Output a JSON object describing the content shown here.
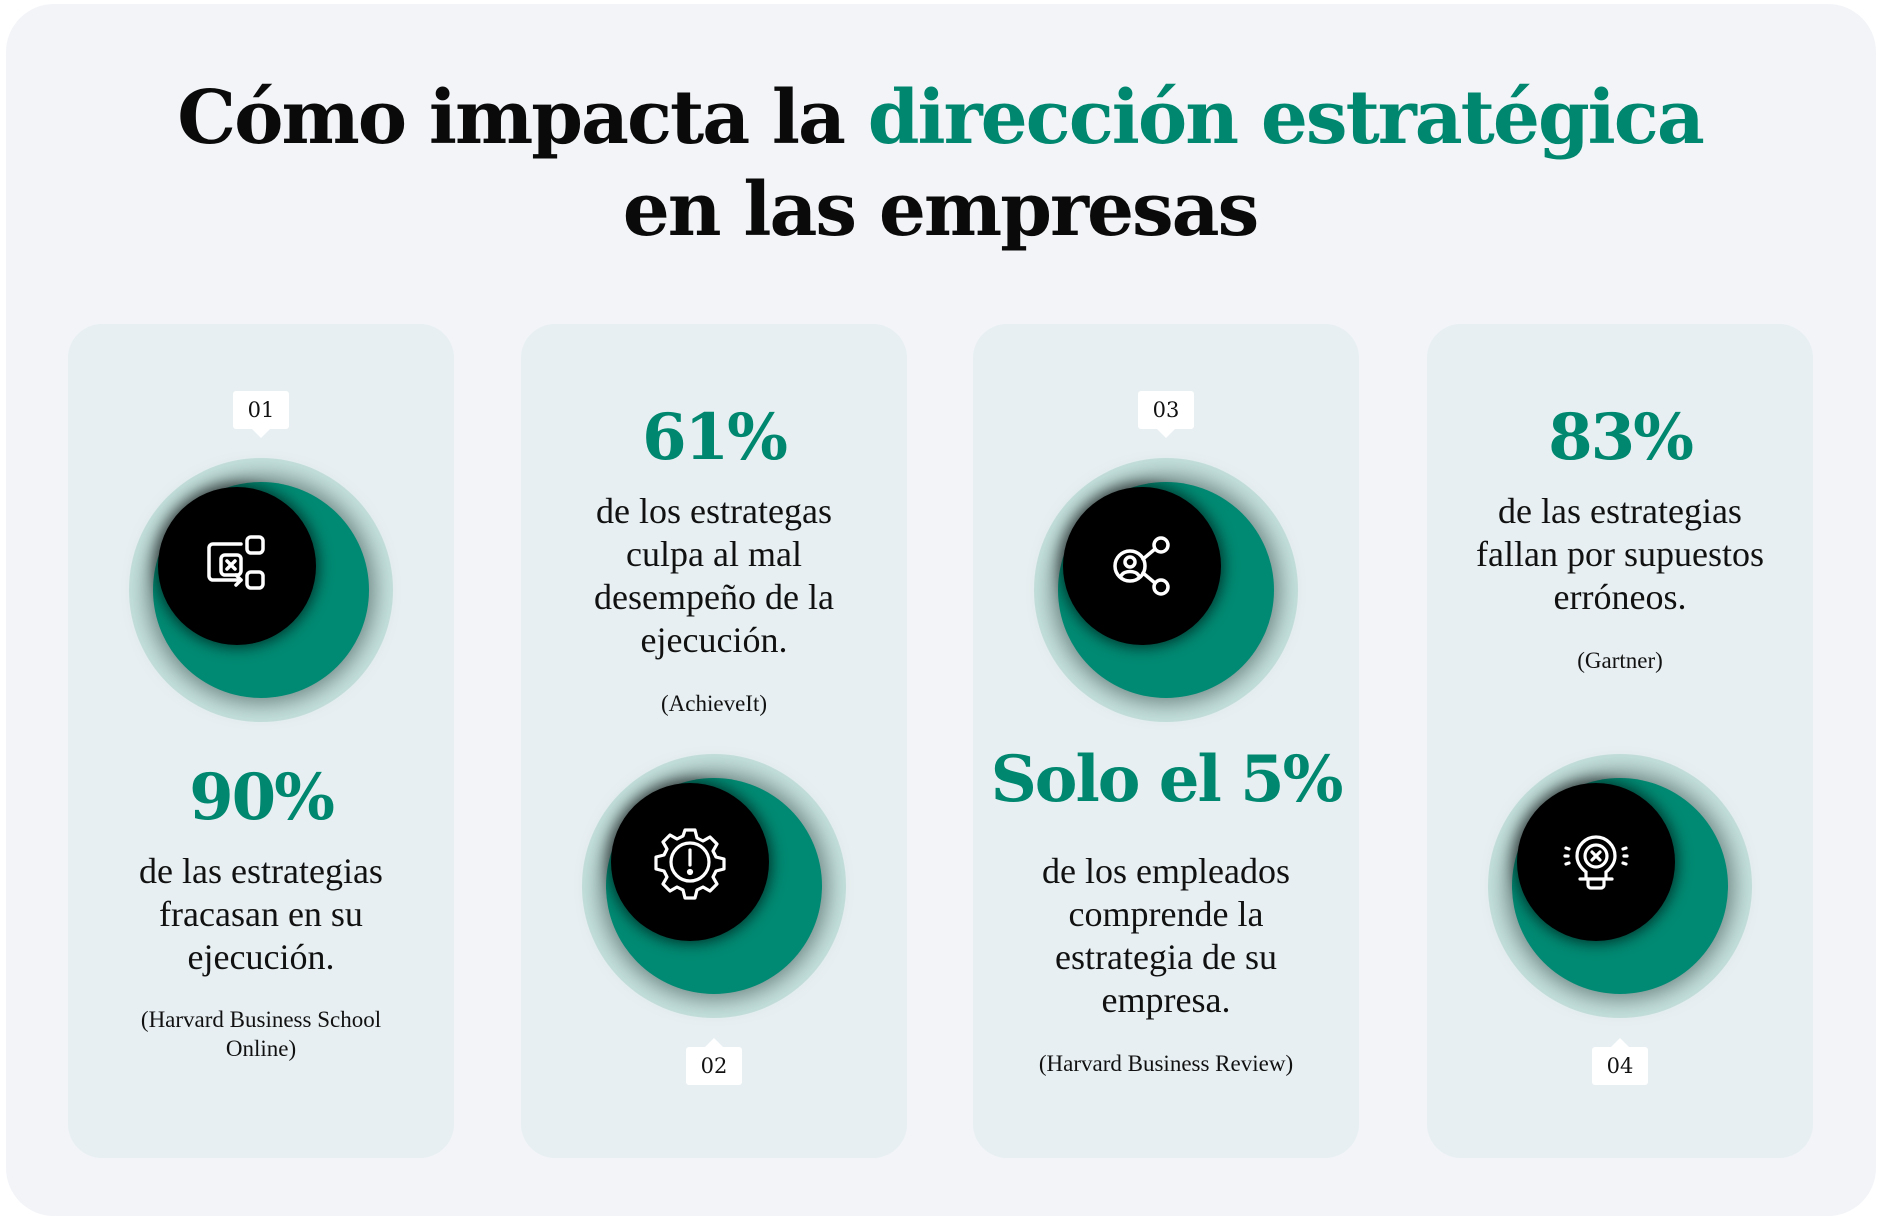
{
  "title": {
    "part1": "Cómo impacta la ",
    "accent": "dirección estratégica",
    "line2": "en las empresas"
  },
  "colors": {
    "accent": "#00876f",
    "ring": "#008a73",
    "halo": "#c6e2de",
    "card": "#e7eff2",
    "background": "#f2f4f8"
  },
  "cards": [
    {
      "number": "01",
      "stat": "90%",
      "text": [
        "de las estrategias",
        "fracasan en su",
        "ejecución."
      ],
      "source": [
        "(Harvard Business School",
        "Online)"
      ],
      "icon": "process-x-icon"
    },
    {
      "number": "02",
      "stat": "61%",
      "text": [
        "de los estrategas",
        "culpa al mal",
        "desempeño de la",
        "ejecución."
      ],
      "source": [
        "(AchieveIt)"
      ],
      "icon": "gear-alert-icon"
    },
    {
      "number": "03",
      "stat": "Solo el 5%",
      "text": [
        "de los empleados",
        "comprende la",
        "estrategia de su",
        "empresa."
      ],
      "source": [
        "(Harvard Business Review)"
      ],
      "icon": "share-user-icon"
    },
    {
      "number": "04",
      "stat": "83%",
      "text": [
        "de las estrategias",
        "fallan por supuestos",
        "erróneos."
      ],
      "source": [
        "(Gartner)"
      ],
      "icon": "lightbulb-x-icon"
    }
  ]
}
